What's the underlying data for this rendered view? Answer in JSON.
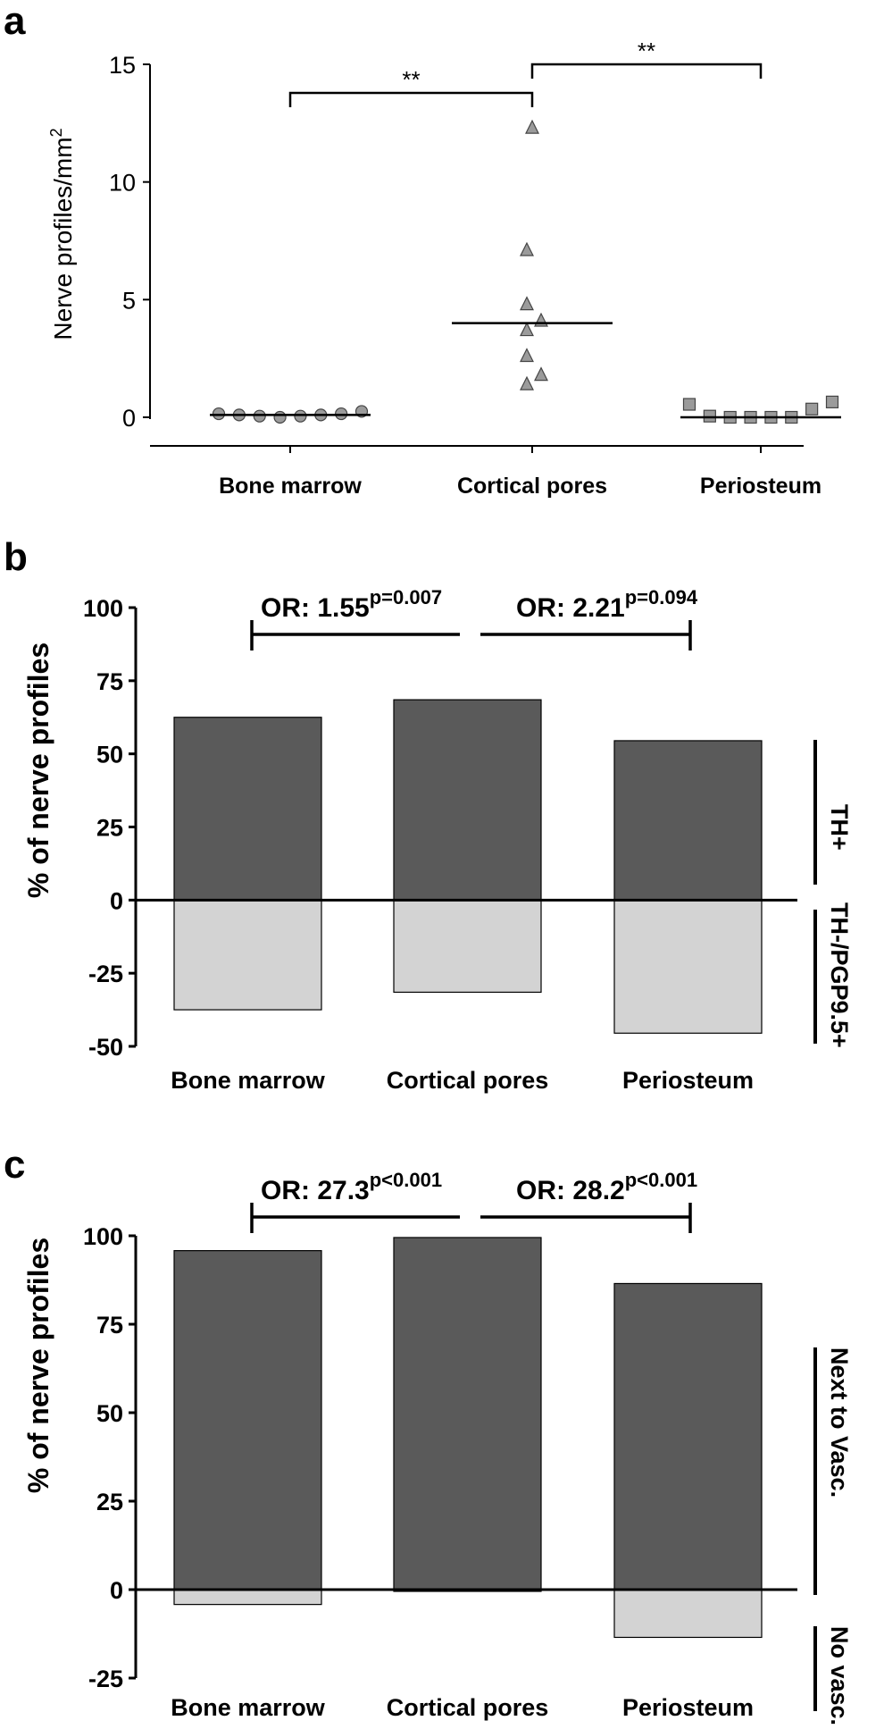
{
  "colors": {
    "dark": "#5a5a5a",
    "light": "#d3d3d3",
    "marker": "#9b9b9b",
    "ink": "#000000"
  },
  "chart_data": [
    {
      "panel": "a",
      "type": "scatter",
      "ylabel": "Nerve profiles/mm",
      "ylabel_sup": "2",
      "ylim": [
        0,
        15
      ],
      "yticks": [
        "0",
        "5",
        "10",
        "15"
      ],
      "categories": [
        "Bone marrow",
        "Cortical pores",
        "Periosteum"
      ],
      "series": [
        {
          "marker": "circle",
          "values": [
            0.15,
            0.1,
            0.05,
            0.0,
            0.05,
            0.1,
            0.15,
            0.25
          ],
          "median": 0.1
        },
        {
          "marker": "triangle",
          "values": [
            12.3,
            7.1,
            4.8,
            4.1,
            3.7,
            2.6,
            1.8,
            1.4
          ],
          "median": 4.0
        },
        {
          "marker": "square",
          "values": [
            0.55,
            0.05,
            0.0,
            0.0,
            0.0,
            0.0,
            0.35,
            0.65
          ],
          "median": 0.0
        }
      ],
      "brackets": [
        {
          "from": 0,
          "to": 1,
          "label": "**"
        },
        {
          "from": 1,
          "to": 2,
          "label": "**"
        }
      ]
    },
    {
      "panel": "b",
      "type": "bar",
      "ylabel": "% of nerve profiles",
      "ylim": [
        -50,
        100
      ],
      "yticks": [
        "100",
        "75",
        "50",
        "25",
        "0",
        "-25",
        "-50"
      ],
      "categories": [
        "Bone marrow",
        "Cortical pores",
        "Periosteum"
      ],
      "series": [
        {
          "name": "TH+",
          "values": [
            62.5,
            68.5,
            54.5
          ]
        },
        {
          "name": "TH-/PGP9.5+",
          "values": [
            -37.5,
            -31.5,
            -45.5
          ]
        }
      ],
      "brackets": [
        {
          "label": "OR: 1.55",
          "sup": "p=0.007"
        },
        {
          "label": "OR: 2.21",
          "sup": "p=0.094"
        }
      ]
    },
    {
      "panel": "c",
      "type": "bar",
      "ylabel": "% of nerve profiles",
      "ylim": [
        -25,
        100
      ],
      "yticks": [
        "100",
        "75",
        "50",
        "25",
        "0",
        "-25"
      ],
      "categories": [
        "Bone marrow",
        "Cortical pores",
        "Periosteum"
      ],
      "series": [
        {
          "name": "Next to Vasc.",
          "values": [
            95.8,
            99.5,
            86.5
          ]
        },
        {
          "name": "No vasc.",
          "values": [
            -4.2,
            -0.5,
            -13.5
          ]
        }
      ],
      "brackets": [
        {
          "label": "OR: 27.3",
          "sup": "p<0.001"
        },
        {
          "label": "OR: 28.2",
          "sup": "p<0.001"
        }
      ]
    }
  ]
}
